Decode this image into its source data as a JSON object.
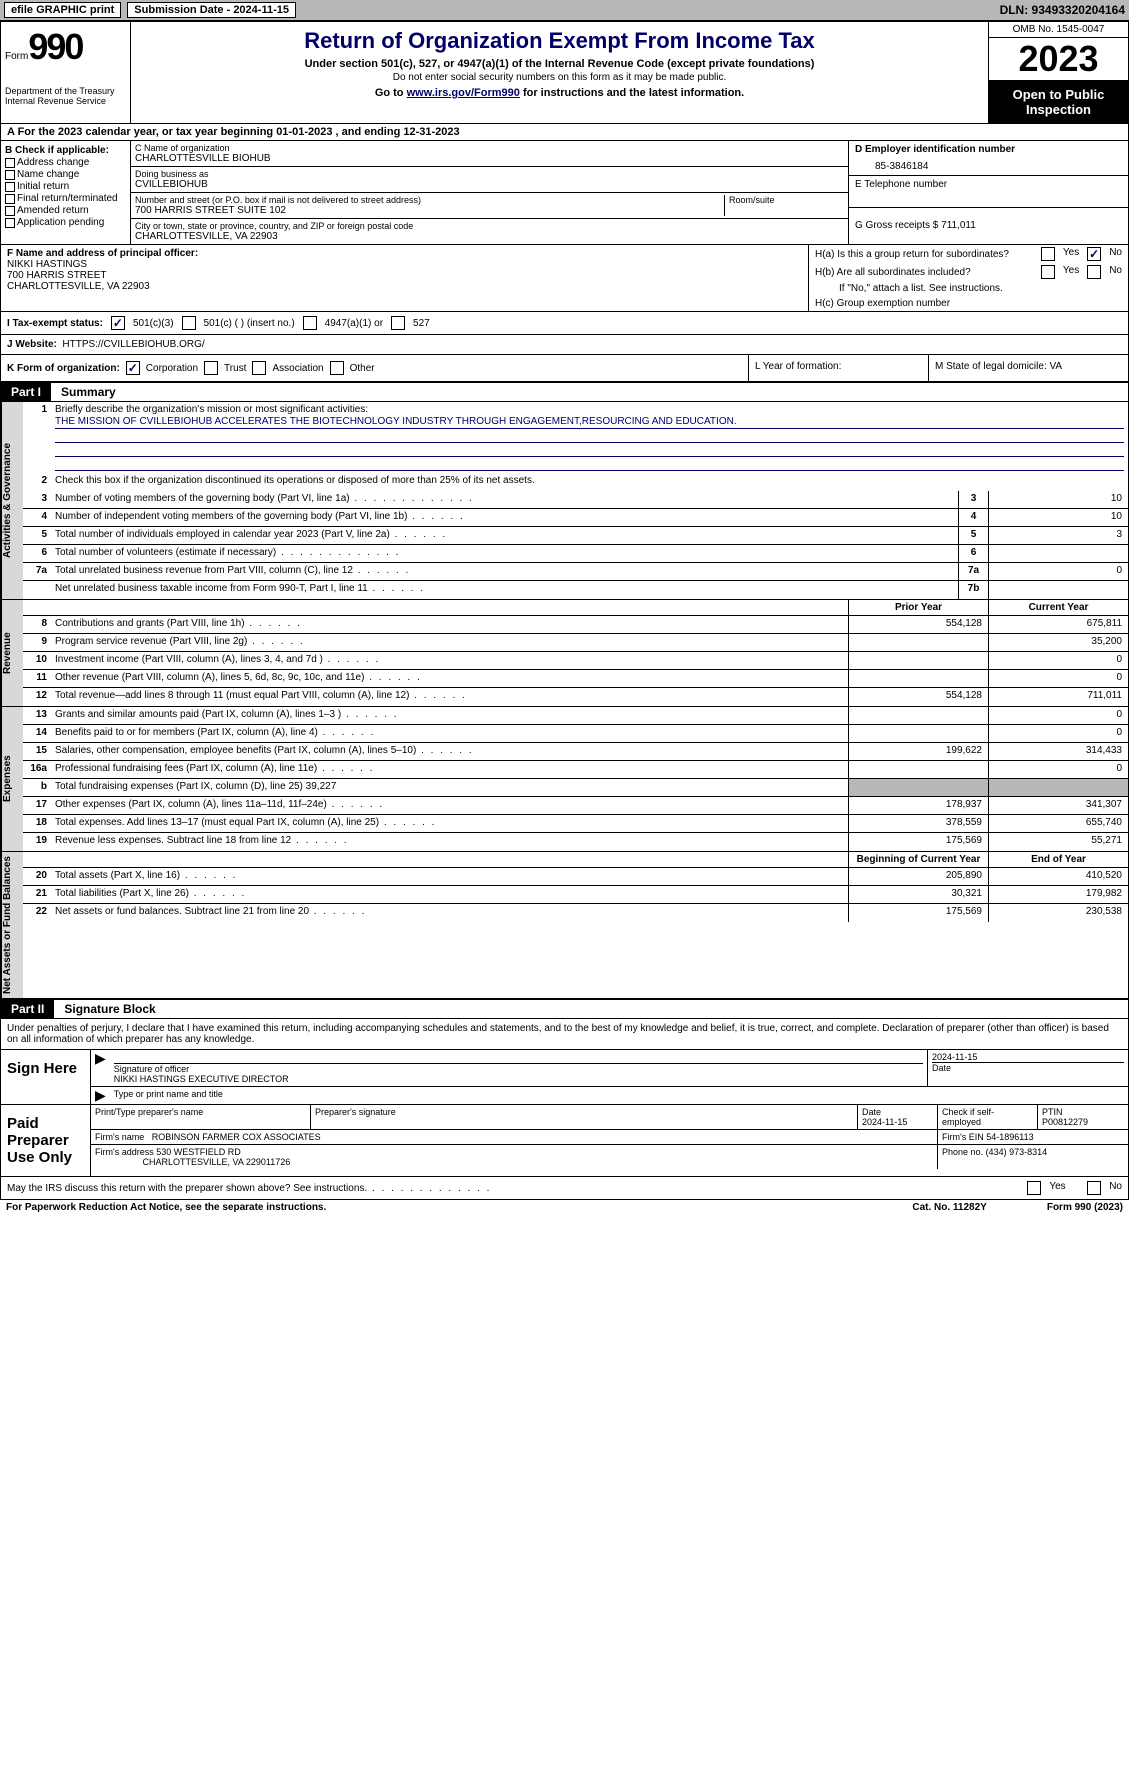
{
  "topbar": {
    "efile_label": "efile GRAPHIC print",
    "submission_label": "Submission Date - 2024-11-15",
    "dln_label": "DLN: 93493320204164"
  },
  "header": {
    "form_word": "Form",
    "form_number": "990",
    "dept": "Department of the Treasury",
    "irs": "Internal Revenue Service",
    "title": "Return of Organization Exempt From Income Tax",
    "subtitle": "Under section 501(c), 527, or 4947(a)(1) of the Internal Revenue Code (except private foundations)",
    "ssn_note": "Do not enter social security numbers on this form as it may be made public.",
    "goto_prefix": "Go to ",
    "goto_link": "www.irs.gov/Form990",
    "goto_suffix": " for instructions and the latest information.",
    "omb": "OMB No. 1545-0047",
    "year": "2023",
    "inspection": "Open to Public Inspection"
  },
  "section_a": "A  For the 2023 calendar year, or tax year beginning 01-01-2023    , and ending 12-31-2023",
  "col_b": {
    "header": "B Check if applicable:",
    "items": [
      "Address change",
      "Name change",
      "Initial return",
      "Final return/terminated",
      "Amended return",
      "Application pending"
    ]
  },
  "col_c": {
    "name_label": "C Name of organization",
    "name": "CHARLOTTESVILLE BIOHUB",
    "dba_label": "Doing business as",
    "dba": "CVILLEBIOHUB",
    "street_label": "Number and street (or P.O. box if mail is not delivered to street address)",
    "room_label": "Room/suite",
    "street": "700 HARRIS STREET SUITE 102",
    "city_label": "City or town, state or province, country, and ZIP or foreign postal code",
    "city": "CHARLOTTESVILLE, VA  22903"
  },
  "col_d": {
    "d_label": "D Employer identification number",
    "d_val": "85-3846184",
    "e_label": "E Telephone number",
    "g_label": "G Gross receipts $ 711,011"
  },
  "row_f": {
    "f_label": "F  Name and address of principal officer:",
    "f_name": "NIKKI HASTINGS",
    "f_street": "700 HARRIS STREET",
    "f_city": "CHARLOTTESVILLE, VA  22903",
    "ha": "H(a)  Is this a group return for subordinates?",
    "hb": "H(b)  Are all subordinates included?",
    "hb_note": "If \"No,\" attach a list. See instructions.",
    "hc": "H(c)  Group exemption number"
  },
  "row_i": {
    "i_label": "I    Tax-exempt status:",
    "opt1": "501(c)(3)",
    "opt2": "501(c) (  ) (insert no.)",
    "opt3": "4947(a)(1) or",
    "opt4": "527"
  },
  "row_j": {
    "j_label": "J    Website:",
    "j_val": "HTTPS://CVILLEBIOHUB.ORG/"
  },
  "row_k": {
    "k_label": "K Form of organization:",
    "k_corp": "Corporation",
    "k_trust": "Trust",
    "k_assoc": "Association",
    "k_other": "Other",
    "l_label": "L Year of formation:",
    "m_label": "M State of legal domicile: VA"
  },
  "parts": {
    "p1_num": "Part I",
    "p1_title": "Summary",
    "p2_num": "Part II",
    "p2_title": "Signature Block"
  },
  "summary": {
    "tab1": "Activities & Governance",
    "tab2": "Revenue",
    "tab3": "Expenses",
    "tab4": "Net Assets or Fund Balances",
    "line1_label": "Briefly describe the organization's mission or most significant activities:",
    "line1_mission": "THE MISSION OF CVILLEBIOHUB ACCELERATES THE BIOTECHNOLOGY INDUSTRY THROUGH ENGAGEMENT,RESOURCING AND EDUCATION.",
    "line2": "Check this box       if the organization discontinued its operations or disposed of more than 25% of its net assets.",
    "line3": "Number of voting members of the governing body (Part VI, line 1a)",
    "line4": "Number of independent voting members of the governing body (Part VI, line 1b)",
    "line5": "Total number of individuals employed in calendar year 2023 (Part V, line 2a)",
    "line6": "Total number of volunteers (estimate if necessary)",
    "line7a": "Total unrelated business revenue from Part VIII, column (C), line 12",
    "line7b": "Net unrelated business taxable income from Form 990-T, Part I, line 11",
    "vals": {
      "3": "10",
      "4": "10",
      "5": "3",
      "6": "",
      "7a": "0",
      "7b": ""
    },
    "prior_hdr": "Prior Year",
    "current_hdr": "Current Year",
    "beg_hdr": "Beginning of Current Year",
    "end_hdr": "End of Year",
    "rows": [
      {
        "n": "8",
        "d": "Contributions and grants (Part VIII, line 1h)",
        "py": "554,128",
        "cy": "675,811"
      },
      {
        "n": "9",
        "d": "Program service revenue (Part VIII, line 2g)",
        "py": "",
        "cy": "35,200"
      },
      {
        "n": "10",
        "d": "Investment income (Part VIII, column (A), lines 3, 4, and 7d )",
        "py": "",
        "cy": "0"
      },
      {
        "n": "11",
        "d": "Other revenue (Part VIII, column (A), lines 5, 6d, 8c, 9c, 10c, and 11e)",
        "py": "",
        "cy": "0"
      },
      {
        "n": "12",
        "d": "Total revenue—add lines 8 through 11 (must equal Part VIII, column (A), line 12)",
        "py": "554,128",
        "cy": "711,011"
      },
      {
        "n": "13",
        "d": "Grants and similar amounts paid (Part IX, column (A), lines 1–3 )",
        "py": "",
        "cy": "0"
      },
      {
        "n": "14",
        "d": "Benefits paid to or for members (Part IX, column (A), line 4)",
        "py": "",
        "cy": "0"
      },
      {
        "n": "15",
        "d": "Salaries, other compensation, employee benefits (Part IX, column (A), lines 5–10)",
        "py": "199,622",
        "cy": "314,433"
      },
      {
        "n": "16a",
        "d": "Professional fundraising fees (Part IX, column (A), line 11e)",
        "py": "",
        "cy": "0"
      },
      {
        "n": "b",
        "d": "Total fundraising expenses (Part IX, column (D), line 25) 39,227",
        "py": "shaded",
        "cy": "shaded"
      },
      {
        "n": "17",
        "d": "Other expenses (Part IX, column (A), lines 11a–11d, 11f–24e)",
        "py": "178,937",
        "cy": "341,307"
      },
      {
        "n": "18",
        "d": "Total expenses. Add lines 13–17 (must equal Part IX, column (A), line 25)",
        "py": "378,559",
        "cy": "655,740"
      },
      {
        "n": "19",
        "d": "Revenue less expenses. Subtract line 18 from line 12",
        "py": "175,569",
        "cy": "55,271"
      },
      {
        "n": "20",
        "d": "Total assets (Part X, line 16)",
        "py": "205,890",
        "cy": "410,520"
      },
      {
        "n": "21",
        "d": "Total liabilities (Part X, line 26)",
        "py": "30,321",
        "cy": "179,982"
      },
      {
        "n": "22",
        "d": "Net assets or fund balances. Subtract line 21 from line 20",
        "py": "175,569",
        "cy": "230,538"
      }
    ]
  },
  "sig": {
    "intro": "Under penalties of perjury, I declare that I have examined this return, including accompanying schedules and statements, and to the best of my knowledge and belief, it is true, correct, and complete. Declaration of preparer (other than officer) is based on all information of which preparer has any knowledge.",
    "sign_here": "Sign Here",
    "sig_officer_label": "Signature of officer",
    "sig_officer": "NIKKI HASTINGS EXECUTIVE DIRECTOR",
    "sig_date_label": "Date",
    "sig_date": "2024-11-15",
    "type_label": "Type or print name and title",
    "paid": "Paid Preparer Use Only",
    "prep_name_label": "Print/Type preparer's name",
    "prep_sig_label": "Preparer's signature",
    "prep_date_label": "Date",
    "prep_date": "2024-11-15",
    "self_emp": "Check      if self-employed",
    "ptin_label": "PTIN",
    "ptin": "P00812279",
    "firm_name_label": "Firm's name",
    "firm_name": "ROBINSON FARMER COX ASSOCIATES",
    "firm_ein_label": "Firm's EIN",
    "firm_ein": "54-1896113",
    "firm_addr_label": "Firm's address",
    "firm_addr1": "530 WESTFIELD RD",
    "firm_addr2": "CHARLOTTESVILLE, VA  229011726",
    "phone_label": "Phone no.",
    "phone": "(434) 973-8314",
    "discuss": "May the IRS discuss this return with the preparer shown above? See instructions.",
    "yes": "Yes",
    "no": "No"
  },
  "footer": {
    "paperwork": "For Paperwork Reduction Act Notice, see the separate instructions.",
    "cat": "Cat. No. 11282Y",
    "form": "Form 990 (2023)"
  }
}
